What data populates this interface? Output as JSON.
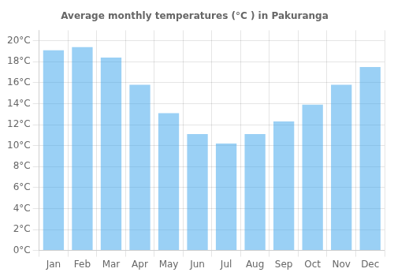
{
  "chart_data": {
    "type": "bar",
    "title": "Average monthly temperatures (°C ) in Pakuranga",
    "categories": [
      "Jan",
      "Feb",
      "Mar",
      "Apr",
      "May",
      "Jun",
      "Jul",
      "Aug",
      "Sep",
      "Oct",
      "Nov",
      "Dec"
    ],
    "values": [
      19.1,
      19.4,
      18.4,
      15.8,
      13.1,
      11.1,
      10.2,
      11.1,
      12.3,
      13.9,
      15.8,
      17.5
    ],
    "ylim": [
      0,
      21
    ],
    "yticks": [
      {
        "value": 0,
        "label": "0°C"
      },
      {
        "value": 2,
        "label": "2°C"
      },
      {
        "value": 4,
        "label": "4°C"
      },
      {
        "value": 6,
        "label": "6°C"
      },
      {
        "value": 8,
        "label": "8°C"
      },
      {
        "value": 10,
        "label": "10°C"
      },
      {
        "value": 12,
        "label": "12°C"
      },
      {
        "value": 14,
        "label": "14°C"
      },
      {
        "value": 16,
        "label": "16°C"
      },
      {
        "value": 18,
        "label": "18°C"
      },
      {
        "value": 20,
        "label": "20°C"
      }
    ],
    "grid": true
  }
}
